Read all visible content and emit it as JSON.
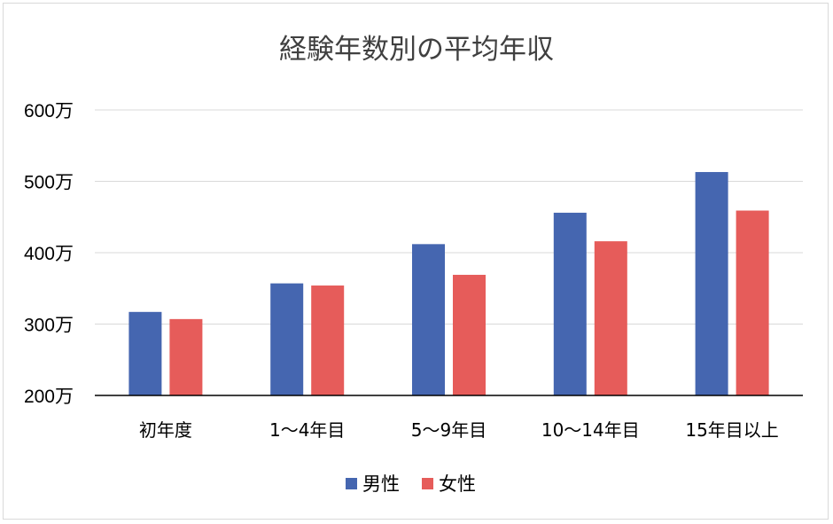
{
  "chart_data": {
    "type": "bar",
    "title": "経験年数別の平均年収",
    "xlabel": "",
    "ylabel": "",
    "categories": [
      "初年度",
      "1〜4年目",
      "5〜9年目",
      "10〜14年目",
      "15年目以上"
    ],
    "series": [
      {
        "name": "男性",
        "color": "#4566B0",
        "values": [
          317,
          357,
          412,
          456,
          513
        ]
      },
      {
        "name": "女性",
        "color": "#E65C5A",
        "values": [
          307,
          354,
          369,
          416,
          459
        ]
      }
    ],
    "ylim": [
      200,
      600
    ],
    "yticks": [
      200,
      300,
      400,
      500,
      600
    ],
    "ytick_labels": [
      "200万",
      "300万",
      "400万",
      "500万",
      "600万"
    ],
    "grid": true,
    "legend_position": "bottom"
  }
}
